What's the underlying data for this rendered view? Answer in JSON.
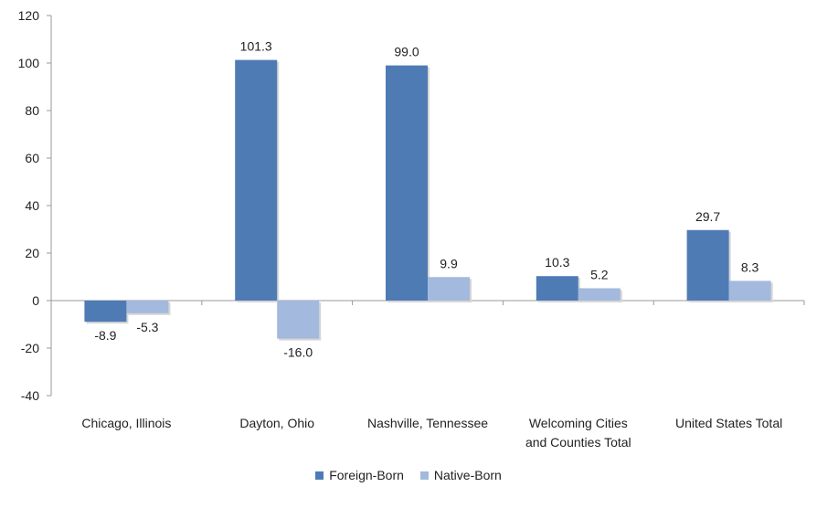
{
  "chart_data": {
    "type": "bar",
    "categories": [
      [
        "Chicago, Illinois"
      ],
      [
        "Dayton, Ohio"
      ],
      [
        "Nashville, Tennessee"
      ],
      [
        "Welcoming Cities",
        "and Counties Total"
      ],
      [
        "United States Total"
      ]
    ],
    "series": [
      {
        "name": "Foreign-Born",
        "values": [
          -8.9,
          101.3,
          99.0,
          10.3,
          29.7
        ],
        "labels": [
          "-8.9",
          "101.3",
          "99.0",
          "10.3",
          "29.7"
        ],
        "color": "#4f7bb5"
      },
      {
        "name": "Native-Born",
        "values": [
          -5.3,
          -16.0,
          9.9,
          5.2,
          8.3
        ],
        "labels": [
          "-5.3",
          "-16.0",
          "9.9",
          "5.2",
          "8.3"
        ],
        "color": "#a3b9dd"
      }
    ],
    "ylim": [
      -40,
      120
    ],
    "yticks": [
      -40,
      -20,
      0,
      20,
      40,
      60,
      80,
      100,
      120
    ],
    "title": "",
    "xlabel": "",
    "ylabel": "",
    "legend_position": "bottom",
    "grid": false
  }
}
